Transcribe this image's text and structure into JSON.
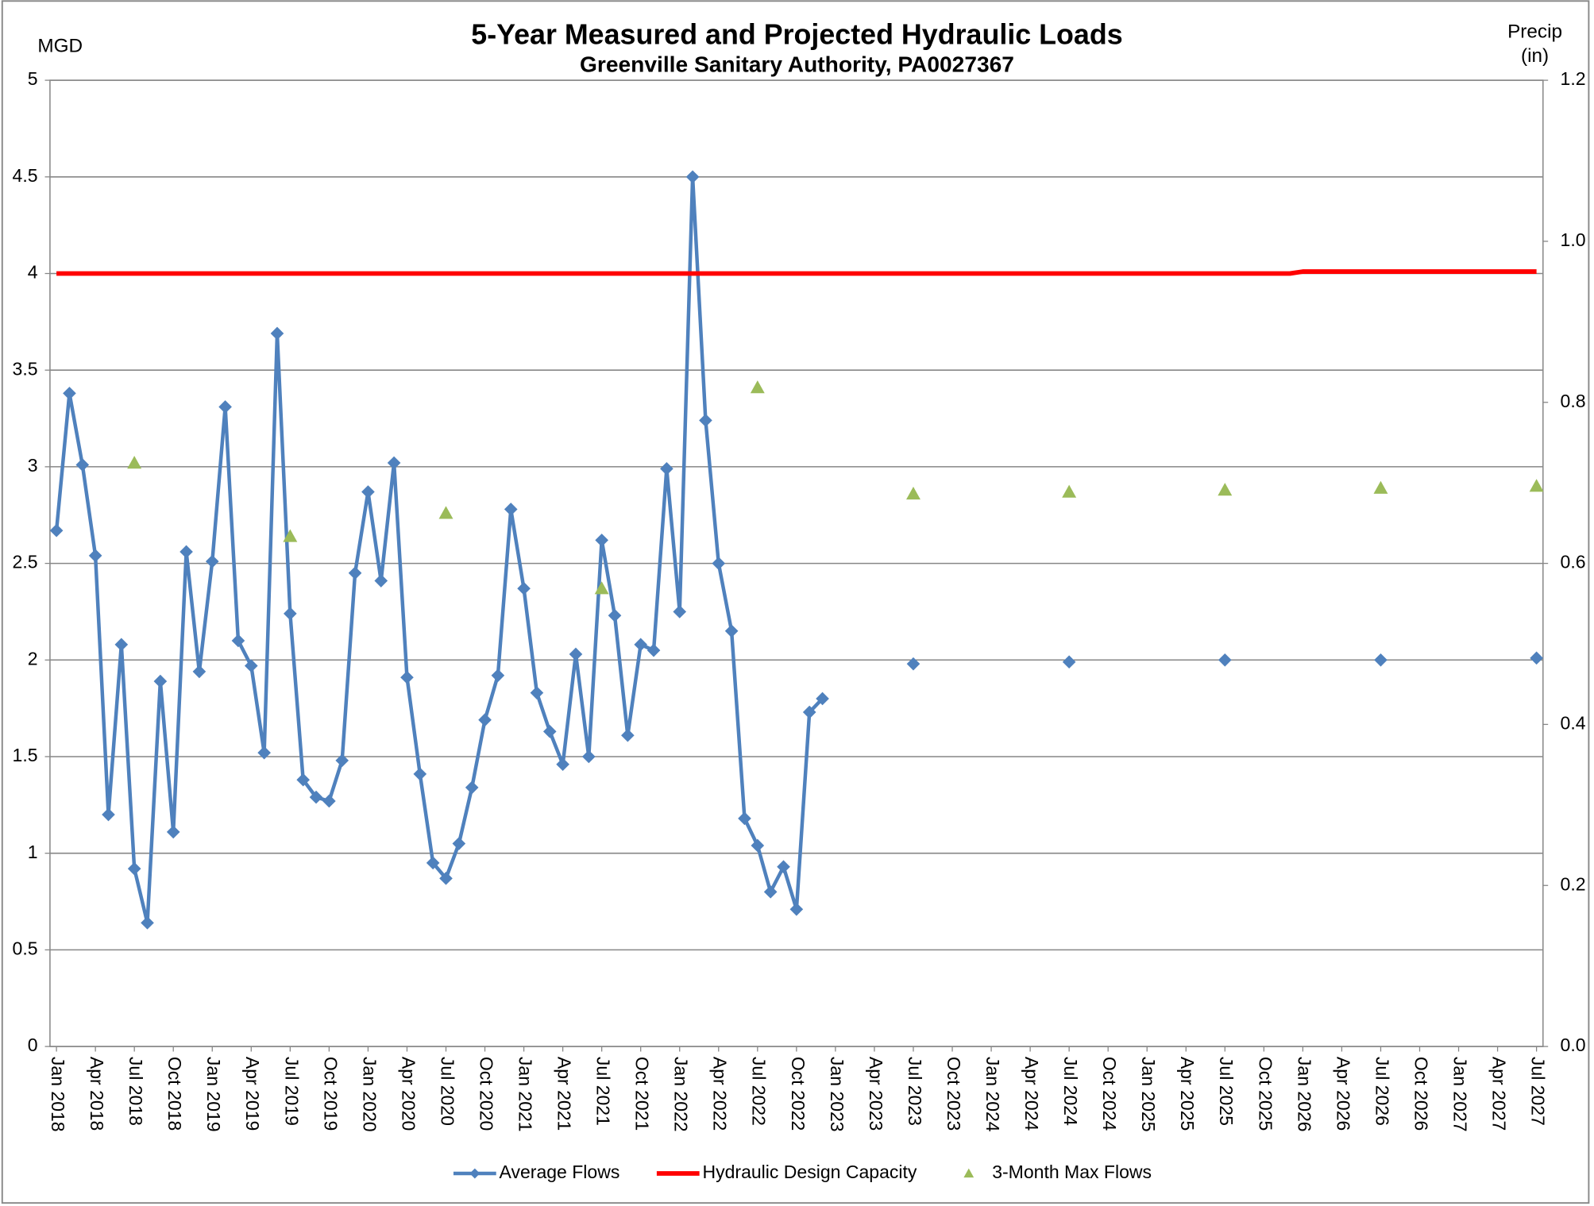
{
  "chart_data": {
    "type": "line",
    "title": "5-Year Measured and Projected Hydraulic Loads",
    "subtitle": "Greenville Sanitary Authority, PA0027367",
    "y_label": "MGD",
    "y2_label": "Precip (in)",
    "categories": [
      "Jan 2018",
      null,
      null,
      "Apr 2018",
      null,
      null,
      "Jul 2018",
      null,
      null,
      "Oct 2018",
      null,
      null,
      "Jan 2019",
      null,
      null,
      "Apr 2019",
      null,
      null,
      "Jul 2019",
      null,
      null,
      "Oct 2019",
      null,
      null,
      "Jan 2020",
      null,
      null,
      "Apr 2020",
      null,
      null,
      "Jul 2020",
      null,
      null,
      "Oct 2020",
      null,
      null,
      "Jan 2021",
      null,
      null,
      "Apr 2021",
      null,
      null,
      "Jul 2021",
      null,
      null,
      "Oct 2021",
      null,
      null,
      "Jan 2022",
      null,
      null,
      "Apr 2022",
      null,
      null,
      "Jul 2022",
      null,
      null,
      "Oct 2022",
      null,
      null,
      "Jan 2023",
      null,
      null,
      "Apr 2023",
      null,
      null,
      "Jul 2023",
      null,
      null,
      "Oct 2023",
      null,
      null,
      "Jan 2024",
      null,
      null,
      "Apr 2024",
      null,
      null,
      "Jul 2024",
      null,
      null,
      "Oct 2024",
      null,
      null,
      "Jan 2025",
      null,
      null,
      "Apr 2025",
      null,
      null,
      "Jul 2025",
      null,
      null,
      "Oct 2025",
      null,
      null,
      "Jan 2026",
      null,
      null,
      "Apr 2026",
      null,
      null,
      "Jul 2026",
      null,
      null,
      "Oct 2026",
      null,
      null,
      "Jan 2027",
      null,
      null,
      "Apr 2027",
      null,
      null,
      "Jul 2027"
    ],
    "series": [
      {
        "name": "Average Flows",
        "color": "#4f81bd",
        "marker": "diamond",
        "line": true,
        "values": [
          2.67,
          3.38,
          3.01,
          2.54,
          1.2,
          2.08,
          0.92,
          0.64,
          1.89,
          1.11,
          2.56,
          1.94,
          2.51,
          3.31,
          2.1,
          1.97,
          1.52,
          3.69,
          2.24,
          1.38,
          1.29,
          1.27,
          1.48,
          2.45,
          2.87,
          2.41,
          3.02,
          1.91,
          1.41,
          0.95,
          0.87,
          1.05,
          1.34,
          1.69,
          1.92,
          2.78,
          2.37,
          1.83,
          1.63,
          1.46,
          2.03,
          1.5,
          2.62,
          2.23,
          1.61,
          2.08,
          2.05,
          2.99,
          2.25,
          4.5,
          3.24,
          2.5,
          2.15,
          1.18,
          1.04,
          0.8,
          0.93,
          0.71,
          1.73,
          1.8,
          null,
          null,
          null,
          null,
          null,
          null,
          1.98,
          null,
          null,
          null,
          null,
          null,
          null,
          null,
          null,
          null,
          null,
          null,
          1.99,
          null,
          null,
          null,
          null,
          null,
          null,
          null,
          null,
          null,
          null,
          null,
          2.0,
          null,
          null,
          null,
          null,
          null,
          null,
          null,
          null,
          null,
          null,
          null,
          2.0,
          null,
          null,
          null,
          null,
          null,
          null,
          null,
          null,
          null,
          null,
          null,
          2.01
        ]
      },
      {
        "name": "Hydraulic Design Capacity",
        "color": "#ff0000",
        "marker": "none",
        "line": true,
        "values": [
          4,
          4,
          4,
          4,
          4,
          4,
          4,
          4,
          4,
          4,
          4,
          4,
          4,
          4,
          4,
          4,
          4,
          4,
          4,
          4,
          4,
          4,
          4,
          4,
          4,
          4,
          4,
          4,
          4,
          4,
          4,
          4,
          4,
          4,
          4,
          4,
          4,
          4,
          4,
          4,
          4,
          4,
          4,
          4,
          4,
          4,
          4,
          4,
          4,
          4,
          4,
          4,
          4,
          4,
          4,
          4,
          4,
          4,
          4,
          4,
          4,
          4,
          4,
          4,
          4,
          4,
          4,
          4,
          4,
          4,
          4,
          4,
          4,
          4,
          4,
          4,
          4,
          4,
          4,
          4,
          4,
          4,
          4,
          4,
          4,
          4,
          4,
          4,
          4,
          4,
          4,
          4,
          4,
          4,
          4,
          4,
          4.01,
          4.01,
          4.01,
          4.01,
          4.01,
          4.01,
          4.01,
          4.01,
          4.01,
          4.01,
          4.01,
          4.01,
          4.01,
          4.01,
          4.01,
          4.01,
          4.01,
          4.01,
          4.01
        ]
      },
      {
        "name": "3-Month Max Flows",
        "color": "#9bbb59",
        "marker": "triangle",
        "line": false,
        "values": [
          null,
          null,
          null,
          null,
          null,
          null,
          3.02,
          null,
          null,
          null,
          null,
          null,
          null,
          null,
          null,
          null,
          null,
          null,
          2.64,
          null,
          null,
          null,
          null,
          null,
          null,
          null,
          null,
          null,
          null,
          null,
          2.76,
          null,
          null,
          null,
          null,
          null,
          null,
          null,
          null,
          null,
          null,
          null,
          2.37,
          null,
          null,
          null,
          null,
          null,
          null,
          null,
          null,
          null,
          null,
          null,
          3.41,
          null,
          null,
          null,
          null,
          null,
          null,
          null,
          null,
          null,
          null,
          null,
          2.86,
          null,
          null,
          null,
          null,
          null,
          null,
          null,
          null,
          null,
          null,
          null,
          2.87,
          null,
          null,
          null,
          null,
          null,
          null,
          null,
          null,
          null,
          null,
          null,
          2.88,
          null,
          null,
          null,
          null,
          null,
          null,
          null,
          null,
          null,
          null,
          null,
          2.89,
          null,
          null,
          null,
          null,
          null,
          null,
          null,
          null,
          null,
          null,
          null,
          2.9
        ]
      }
    ],
    "ylim": [
      0,
      5
    ],
    "yticks": [
      0,
      0.5,
      1,
      1.5,
      2,
      2.5,
      3,
      3.5,
      4,
      4.5,
      5
    ],
    "y2lim": [
      0,
      1.2
    ],
    "y2ticks": [
      {
        "value": 0,
        "label": "0.0"
      },
      0.2,
      0.4,
      0.6,
      0.8,
      {
        "value": 1,
        "label": "1.0"
      },
      1.2
    ],
    "grid": true,
    "legend": "bottom"
  }
}
